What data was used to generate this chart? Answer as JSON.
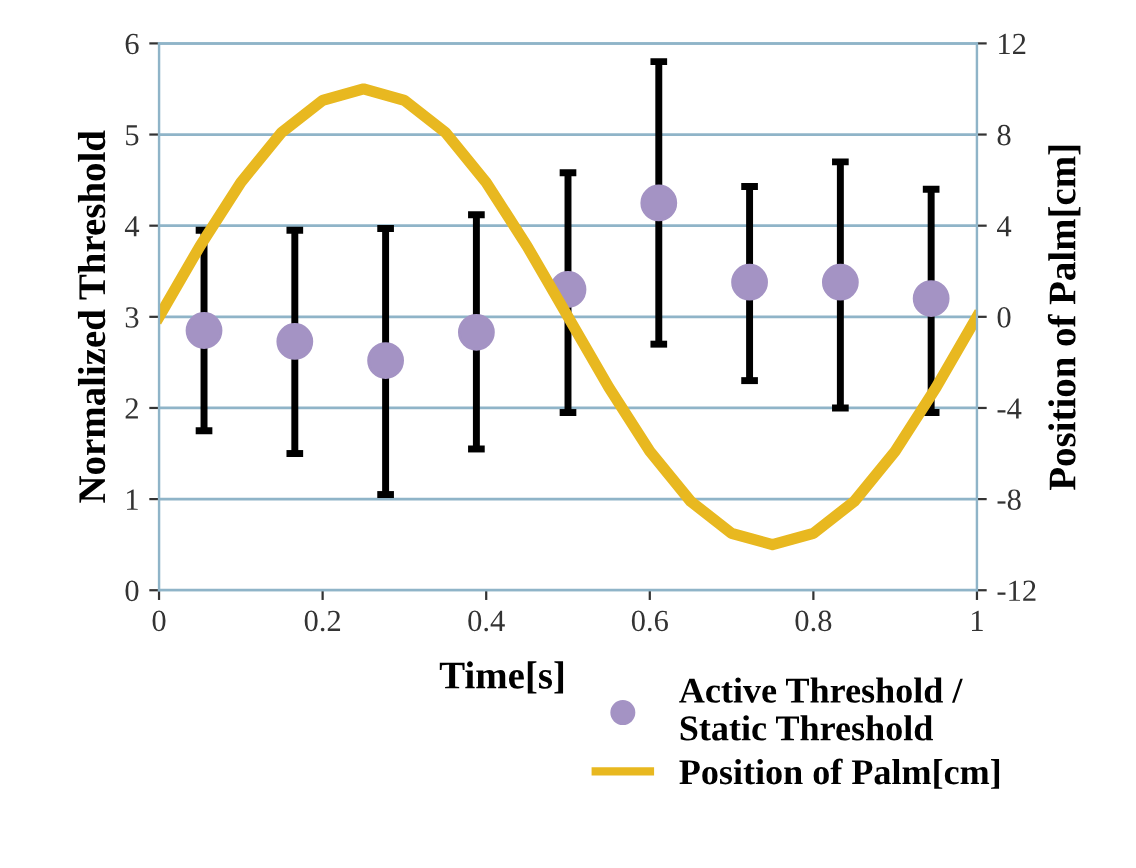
{
  "chart_data": {
    "type": "scatter",
    "xlabel": "Time[s]",
    "ylabel": "Normalized Threshold",
    "y2label": "Position of Palm[cm]",
    "xlim": [
      0,
      1
    ],
    "xticks": [
      0,
      0.2,
      0.4,
      0.6,
      0.8,
      1
    ],
    "ylim": [
      0,
      6
    ],
    "yticks": [
      0,
      1,
      2,
      3,
      4,
      5,
      6
    ],
    "y2lim": [
      -12,
      12
    ],
    "y2ticks": [
      -12,
      -8,
      -4,
      0,
      4,
      8,
      12
    ],
    "grid": "y",
    "legend": "bottom right",
    "marker": "circle",
    "series": [
      {
        "name": "Active Threshold / Static Threshold",
        "color": "#a493c4",
        "x": [
          0.055,
          0.166,
          0.277,
          0.388,
          0.5,
          0.611,
          0.722,
          0.833,
          0.944
        ],
        "values": [
          2.85,
          2.73,
          2.52,
          2.83,
          3.3,
          4.25,
          3.38,
          3.38,
          3.2
        ],
        "errors": [
          [
            1.75,
            3.95
          ],
          [
            1.5,
            3.95
          ],
          [
            1.05,
            3.97
          ],
          [
            1.55,
            4.12
          ],
          [
            1.95,
            4.58
          ],
          [
            2.7,
            5.8
          ],
          [
            2.3,
            4.43
          ],
          [
            2.0,
            4.7
          ],
          [
            1.95,
            4.4
          ]
        ]
      },
      {
        "name": "Position of Palm[cm]",
        "type": "line",
        "axis": "y2",
        "color": "#e8b820",
        "marker": "none",
        "line_style": "solid",
        "x": [
          0,
          0.05,
          0.1,
          0.15,
          0.2,
          0.25,
          0.3,
          0.35,
          0.4,
          0.45,
          0.5,
          0.55,
          0.6,
          0.65,
          0.7,
          0.75,
          0.8,
          0.85,
          0.9,
          0.95,
          1
        ],
        "values": [
          0,
          3.1,
          5.9,
          8.1,
          9.5,
          10,
          9.5,
          8.1,
          5.9,
          3.1,
          0,
          -3.1,
          -5.9,
          -8.1,
          -9.5,
          -10,
          -9.5,
          -8.1,
          -5.9,
          -3.1,
          0
        ]
      }
    ]
  }
}
